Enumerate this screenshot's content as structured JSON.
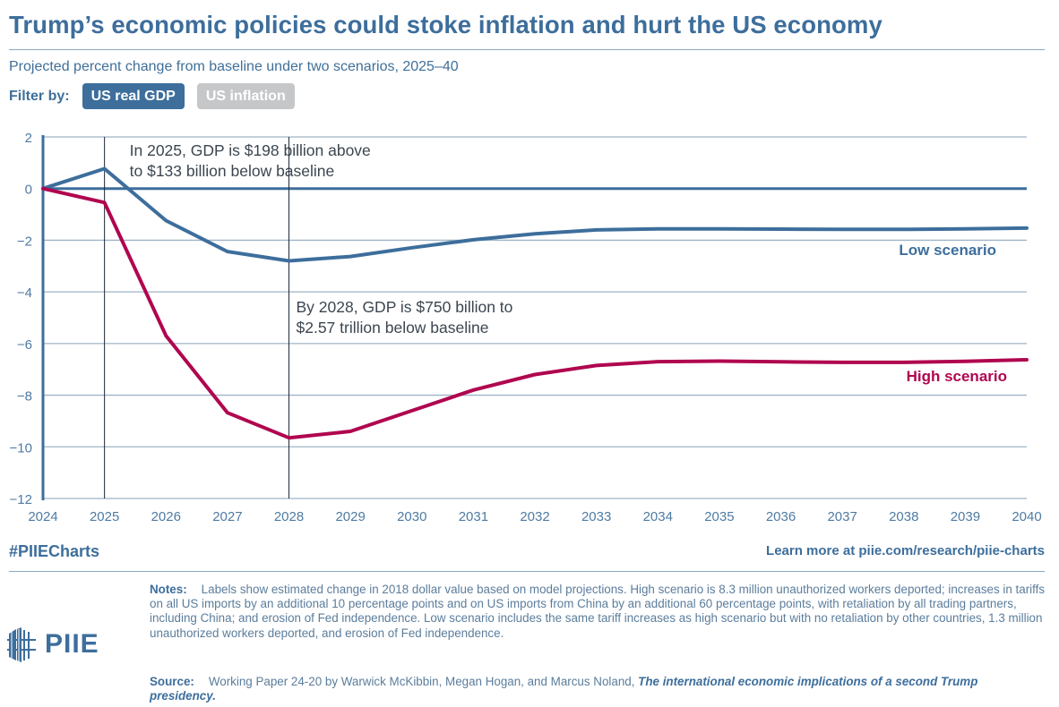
{
  "header": {
    "title": "Trump’s economic policies could stoke inflation and hurt the US economy",
    "subtitle": "Projected percent change from baseline under two scenarios, 2025–40"
  },
  "filter": {
    "label": "Filter by:",
    "options": [
      {
        "label": "US real GDP",
        "active": true
      },
      {
        "label": "US inflation",
        "active": false
      }
    ]
  },
  "colors": {
    "low": "#3d6e9c",
    "high": "#b0064f",
    "grid": "#9fb4c6",
    "axis": "#3d6e9c",
    "annotation_line": "#1e2a36",
    "annotation_text": "#3c4650",
    "filter_active": "#3d6e9c",
    "filter_inactive": "#c5c7c9"
  },
  "chart_data": {
    "type": "line",
    "title": "Trump’s economic policies could stoke inflation and hurt the US economy",
    "subtitle": "Projected percent change from baseline under two scenarios, 2025–40",
    "xlabel": "",
    "ylabel": "",
    "x": [
      2024,
      2025,
      2026,
      2027,
      2028,
      2029,
      2030,
      2031,
      2032,
      2033,
      2034,
      2035,
      2036,
      2037,
      2038,
      2039,
      2040
    ],
    "xlim": [
      2024,
      2040
    ],
    "ylim": [
      -12,
      2
    ],
    "yticks": [
      2,
      0,
      -2,
      -4,
      -6,
      -8,
      -10,
      -12
    ],
    "ytick_labels": [
      "2",
      "0",
      "−2",
      "−4",
      "−6",
      "−8",
      "−10",
      "−12"
    ],
    "xtick_labels": [
      "2024",
      "2025",
      "2026",
      "2027",
      "2028",
      "2029",
      "2030",
      "2031",
      "2032",
      "2033",
      "2034",
      "2035",
      "2036",
      "2037",
      "2038",
      "2039",
      "2040"
    ],
    "grid": true,
    "series": [
      {
        "name": "Low scenario",
        "color": "#3d6e9c",
        "values": [
          0,
          0.77,
          -1.24,
          -2.44,
          -2.8,
          -2.63,
          -2.29,
          -1.98,
          -1.75,
          -1.6,
          -1.56,
          -1.56,
          -1.57,
          -1.58,
          -1.58,
          -1.56,
          -1.53
        ]
      },
      {
        "name": "High scenario",
        "color": "#b0064f",
        "values": [
          0,
          -0.54,
          -5.7,
          -8.68,
          -9.65,
          -9.4,
          -8.6,
          -7.8,
          -7.2,
          -6.85,
          -6.7,
          -6.68,
          -6.71,
          -6.73,
          -6.73,
          -6.69,
          -6.63
        ]
      }
    ],
    "series_labels": [
      {
        "text": "Low scenario",
        "series": "Low scenario"
      },
      {
        "text": "High scenario",
        "series": "High scenario"
      }
    ],
    "annotations": [
      {
        "x": 2025,
        "lines": [
          "In 2025, GDP is $198 billion above",
          "to $133 billion below baseline"
        ]
      },
      {
        "x": 2028,
        "lines": [
          "By 2028, GDP is $750 billion to",
          "$2.57 trillion below baseline"
        ]
      }
    ],
    "legend": "inline-right"
  },
  "footer": {
    "hashtag": "#PIIECharts",
    "learn_more": "Learn more at piie.com/research/piie-charts",
    "notes_label": "Notes:",
    "notes_text": "Labels show estimated change in 2018 dollar value based on model projections. High scenario is 8.3 million unauthorized workers deported; increases in tariffs on all US imports by an additional 10 percentage points and on US imports from China by an additional 60 percentage points, with retaliation by all trading partners, including China; and erosion of Fed independence. Low scenario includes the same tariff increases as high scenario but with no retaliation by other countries, 1.3 million unauthorized workers deported, and erosion of Fed independence.",
    "source_label": "Source:",
    "source_text": "Working Paper 24-20 by Warwick McKibbin, Megan Hogan, and Marcus Noland, ",
    "source_title": "The international economic implications of a second Trump presidency.",
    "logo_text": "PIIE",
    "logo_icon": "building-grid-icon"
  }
}
